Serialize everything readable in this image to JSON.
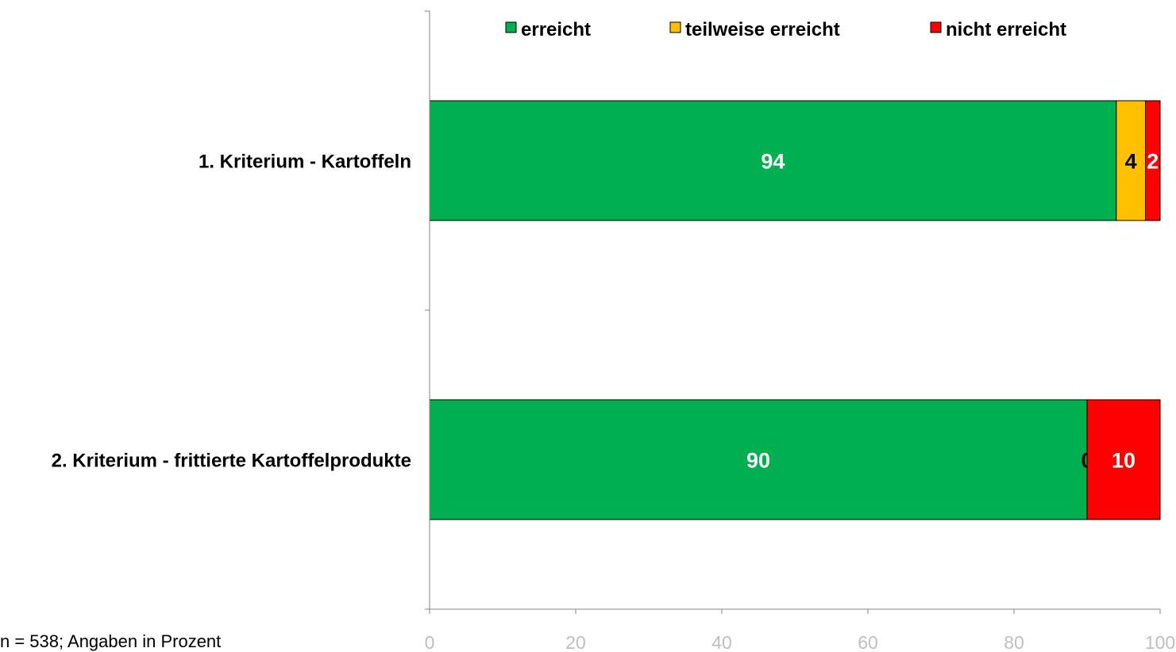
{
  "chart_data": {
    "type": "bar",
    "orientation": "horizontal",
    "stacked": true,
    "categories": [
      "1. Kriterium - Kartoffeln",
      "2. Kriterium - frittierte Kartoffelprodukte"
    ],
    "series": [
      {
        "name": "erreicht",
        "color": "#00b050",
        "label_color": "#ffffff",
        "values": [
          94,
          90
        ]
      },
      {
        "name": "teilweise erreicht",
        "color": "#ffc000",
        "label_color": "#000000",
        "values": [
          4,
          0
        ]
      },
      {
        "name": "nicht erreicht",
        "color": "#ff0000",
        "label_color": "#ffffff",
        "values": [
          2,
          10
        ]
      }
    ],
    "xlim": [
      0,
      100
    ],
    "xticks": [
      "0",
      "20",
      "40",
      "60",
      "80",
      "100"
    ],
    "grid": false,
    "legend_position": "top"
  },
  "footnote": "n = 538; Angaben in Prozent"
}
